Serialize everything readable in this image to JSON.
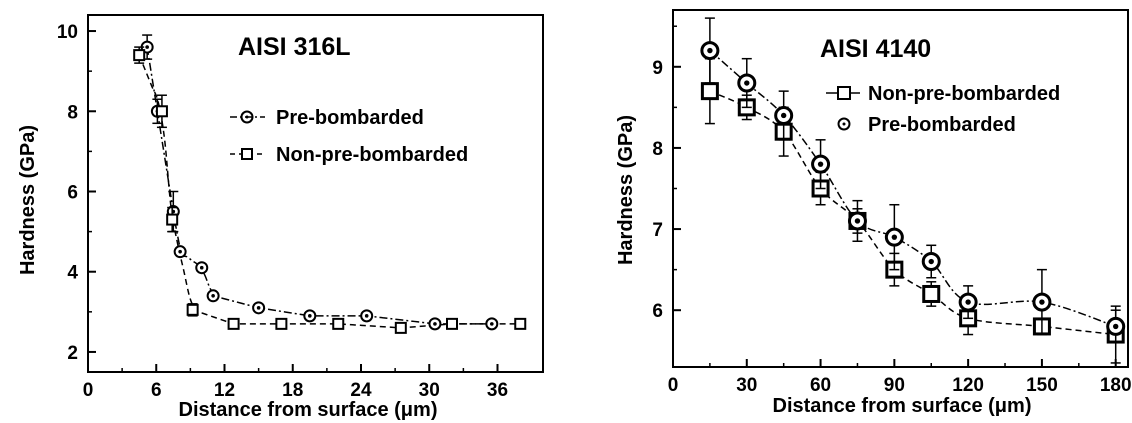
{
  "chart_data": [
    {
      "type": "scatter",
      "title": "AISI 316L",
      "xlabel": "Distance from surface (μm)",
      "ylabel": "Hardness (GPa)",
      "xlim": [
        0,
        40
      ],
      "ylim": [
        1.5,
        10.4
      ],
      "xticks": [
        0,
        6,
        12,
        18,
        24,
        30,
        36
      ],
      "yticks": [
        2,
        4,
        6,
        8,
        10
      ],
      "grid": false,
      "legend_position": "right",
      "series": [
        {
          "name": "Pre-bombarded",
          "marker": "circle-dot",
          "line": "dash-dot",
          "x": [
            5.2,
            6.1,
            7.5,
            8.1,
            10,
            11,
            15,
            19.5,
            24.5,
            30.5,
            35.5
          ],
          "y": [
            9.6,
            8.0,
            5.5,
            4.5,
            4.1,
            3.4,
            3.1,
            2.9,
            2.9,
            2.7,
            2.7
          ],
          "err": [
            0.3,
            0.3,
            0.5,
            0,
            0,
            0,
            0,
            0,
            0,
            0,
            0
          ]
        },
        {
          "name": "Non-pre-bombarded",
          "marker": "square",
          "line": "dashed",
          "x": [
            4.5,
            6.5,
            7.4,
            9.2,
            12.8,
            17,
            22,
            27.5,
            32,
            38
          ],
          "y": [
            9.4,
            8.0,
            5.3,
            3.05,
            2.7,
            2.7,
            2.7,
            2.6,
            2.7,
            2.7
          ],
          "err": [
            0.2,
            0.4,
            0.3,
            0.15,
            0,
            0,
            0,
            0,
            0,
            0
          ]
        }
      ]
    },
    {
      "type": "scatter",
      "title": "AISI 4140",
      "xlabel": "Distance from surface (μm)",
      "ylabel": "Hardness (GPa)",
      "xlim": [
        0,
        185
      ],
      "ylim": [
        5.3,
        9.7
      ],
      "xticks": [
        0,
        30,
        60,
        90,
        120,
        150,
        180
      ],
      "yticks": [
        6,
        7,
        8,
        9
      ],
      "grid": false,
      "legend_position": "top-right",
      "series": [
        {
          "name": "Non-pre-bombarded",
          "marker": "square",
          "line": "dashed",
          "x": [
            15,
            30,
            45,
            60,
            75,
            90,
            105,
            120,
            150,
            180
          ],
          "y": [
            8.7,
            8.5,
            8.2,
            7.5,
            7.1,
            6.5,
            6.2,
            5.9,
            5.8,
            5.7
          ],
          "err": [
            0.4,
            0.15,
            0.3,
            0.2,
            0.25,
            0.2,
            0.15,
            0.2,
            0.05,
            0.35
          ]
        },
        {
          "name": "Pre-bombarded",
          "marker": "circle-dot",
          "line": "dash-dot",
          "x": [
            15,
            30,
            45,
            60,
            75,
            90,
            105,
            120,
            150,
            180
          ],
          "y": [
            9.2,
            8.8,
            8.4,
            7.8,
            7.1,
            6.9,
            6.6,
            6.1,
            6.1,
            5.8
          ],
          "err": [
            0.4,
            0.3,
            0.3,
            0.3,
            0.15,
            0.4,
            0.2,
            0.2,
            0.4,
            0.2
          ]
        }
      ]
    }
  ]
}
